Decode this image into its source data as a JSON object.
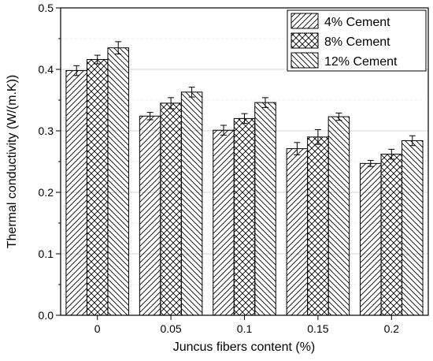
{
  "chart_data": {
    "type": "bar",
    "xlabel": "Juncus fibers content (%)",
    "ylabel": "Thermal conductivity (W/(m.K))",
    "categories": [
      "0",
      "0.05",
      "0.1",
      "0.15",
      "0.2"
    ],
    "ylim": [
      0,
      0.5
    ],
    "yticks": [
      "0.0",
      "0.1",
      "0.2",
      "0.3",
      "0.4",
      "0.5"
    ],
    "grid": true,
    "legend_position": "top-right",
    "series": [
      {
        "name": "4% Cement",
        "pattern": "diagonal-hatch",
        "values": [
          0.398,
          0.324,
          0.301,
          0.271,
          0.247
        ],
        "errors": [
          0.008,
          0.006,
          0.008,
          0.01,
          0.005
        ]
      },
      {
        "name": "8% Cement",
        "pattern": "cross-hatch",
        "values": [
          0.416,
          0.345,
          0.32,
          0.29,
          0.262
        ],
        "errors": [
          0.007,
          0.009,
          0.008,
          0.012,
          0.008
        ]
      },
      {
        "name": "12% Cement",
        "pattern": "back-diagonal-hatch",
        "values": [
          0.435,
          0.363,
          0.346,
          0.323,
          0.284
        ],
        "errors": [
          0.01,
          0.008,
          0.008,
          0.006,
          0.008
        ]
      }
    ]
  }
}
